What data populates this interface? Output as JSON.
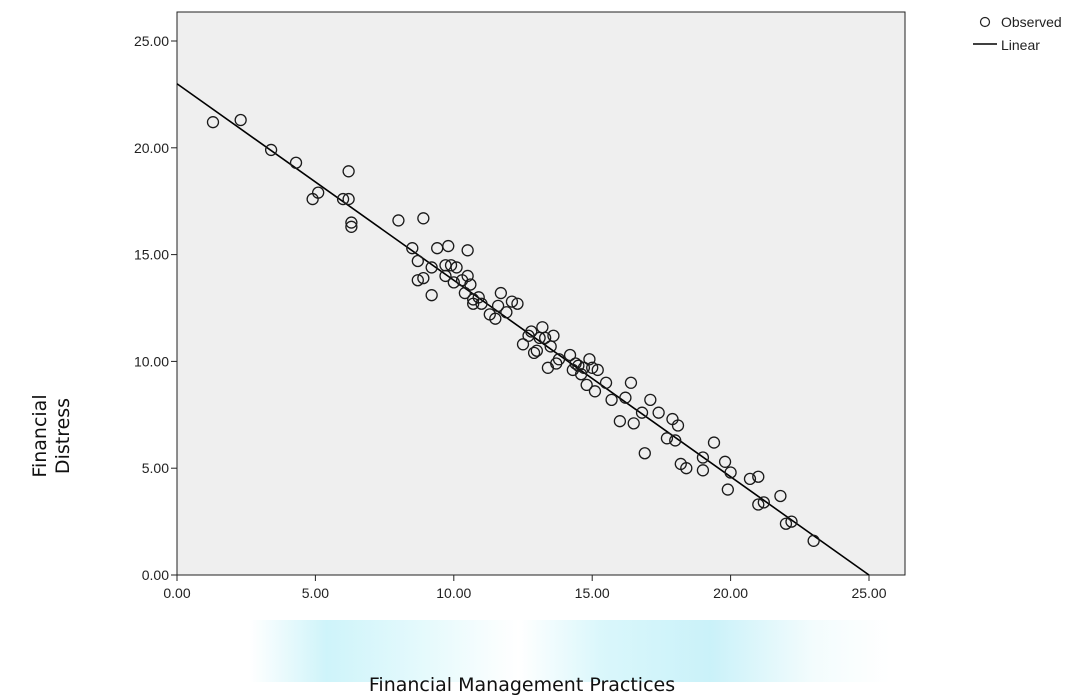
{
  "chart_data": {
    "type": "scatter",
    "xlabel": "Financial Management Practices",
    "ylabel_lines": [
      "Financial",
      "Distress"
    ],
    "xlim": [
      0,
      25
    ],
    "ylim": [
      0,
      25
    ],
    "xticks": [
      "0.00",
      "5.00",
      "10.00",
      "15.00",
      "20.00",
      "25.00"
    ],
    "yticks": [
      "0.00",
      "5.00",
      "10.00",
      "15.00",
      "20.00",
      "25.00"
    ],
    "grid": false,
    "legend_position": "top-right",
    "legend": [
      {
        "label": "Observed",
        "marker": "circle"
      },
      {
        "label": "Linear",
        "marker": "line"
      }
    ],
    "fit_line": {
      "intercept": 23.0,
      "slope": -0.92
    },
    "points": [
      [
        1.3,
        21.2
      ],
      [
        2.3,
        21.3
      ],
      [
        3.4,
        19.9
      ],
      [
        4.3,
        19.3
      ],
      [
        4.9,
        17.6
      ],
      [
        5.1,
        17.9
      ],
      [
        6.0,
        17.6
      ],
      [
        6.2,
        17.6
      ],
      [
        6.2,
        18.9
      ],
      [
        6.3,
        16.5
      ],
      [
        6.3,
        16.3
      ],
      [
        8.0,
        16.6
      ],
      [
        8.5,
        15.3
      ],
      [
        8.7,
        14.7
      ],
      [
        8.7,
        13.8
      ],
      [
        8.9,
        16.7
      ],
      [
        8.9,
        13.9
      ],
      [
        9.2,
        13.1
      ],
      [
        9.2,
        14.4
      ],
      [
        9.4,
        15.3
      ],
      [
        9.7,
        14.0
      ],
      [
        9.7,
        14.5
      ],
      [
        9.8,
        15.4
      ],
      [
        9.9,
        14.5
      ],
      [
        10.0,
        13.7
      ],
      [
        10.1,
        14.4
      ],
      [
        10.3,
        13.8
      ],
      [
        10.4,
        13.2
      ],
      [
        10.5,
        15.2
      ],
      [
        10.5,
        14.0
      ],
      [
        10.6,
        13.6
      ],
      [
        10.7,
        12.9
      ],
      [
        10.7,
        12.7
      ],
      [
        10.9,
        13.0
      ],
      [
        11.0,
        12.7
      ],
      [
        11.3,
        12.2
      ],
      [
        11.5,
        12.0
      ],
      [
        11.6,
        12.6
      ],
      [
        11.7,
        13.2
      ],
      [
        11.9,
        12.3
      ],
      [
        12.1,
        12.8
      ],
      [
        12.3,
        12.7
      ],
      [
        12.5,
        10.8
      ],
      [
        12.7,
        11.2
      ],
      [
        12.8,
        11.4
      ],
      [
        12.9,
        10.4
      ],
      [
        13.0,
        10.5
      ],
      [
        13.1,
        11.1
      ],
      [
        13.2,
        11.6
      ],
      [
        13.3,
        11.1
      ],
      [
        13.4,
        9.7
      ],
      [
        13.5,
        10.7
      ],
      [
        13.6,
        11.2
      ],
      [
        13.7,
        9.9
      ],
      [
        13.8,
        10.1
      ],
      [
        14.2,
        10.3
      ],
      [
        14.3,
        9.6
      ],
      [
        14.4,
        9.9
      ],
      [
        14.5,
        9.8
      ],
      [
        14.6,
        9.4
      ],
      [
        14.7,
        9.7
      ],
      [
        14.8,
        8.9
      ],
      [
        14.9,
        10.1
      ],
      [
        15.0,
        9.7
      ],
      [
        15.1,
        8.6
      ],
      [
        15.2,
        9.6
      ],
      [
        15.5,
        9.0
      ],
      [
        15.7,
        8.2
      ],
      [
        16.0,
        7.2
      ],
      [
        16.2,
        8.3
      ],
      [
        16.4,
        9.0
      ],
      [
        16.5,
        7.1
      ],
      [
        16.8,
        7.6
      ],
      [
        16.9,
        5.7
      ],
      [
        17.1,
        8.2
      ],
      [
        17.4,
        7.6
      ],
      [
        17.7,
        6.4
      ],
      [
        17.9,
        7.3
      ],
      [
        18.0,
        6.3
      ],
      [
        18.1,
        7.0
      ],
      [
        18.2,
        5.2
      ],
      [
        18.4,
        5.0
      ],
      [
        19.0,
        5.5
      ],
      [
        19.0,
        4.9
      ],
      [
        19.4,
        6.2
      ],
      [
        19.8,
        5.3
      ],
      [
        19.9,
        4.0
      ],
      [
        20.0,
        4.8
      ],
      [
        20.7,
        4.5
      ],
      [
        21.0,
        4.6
      ],
      [
        21.0,
        3.3
      ],
      [
        21.2,
        3.4
      ],
      [
        21.8,
        3.7
      ],
      [
        22.0,
        2.4
      ],
      [
        22.2,
        2.5
      ],
      [
        23.0,
        1.6
      ]
    ]
  }
}
